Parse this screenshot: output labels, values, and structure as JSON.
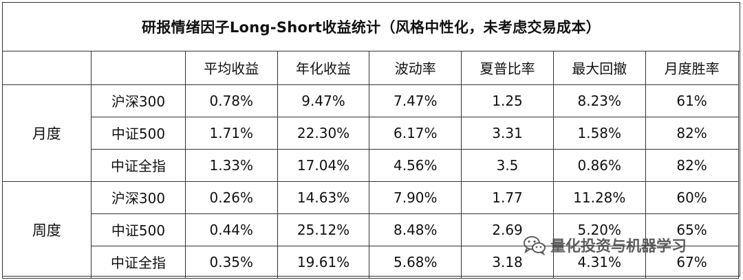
{
  "table_title": "研报情绪因子Long-Short收益统计（风格中性化，未考虑交易成本）",
  "columns": [
    "",
    "",
    "平均收益",
    "年化收益",
    "波动率",
    "夏普比率",
    "最大回撤",
    "月度胜率"
  ],
  "groups": [
    {
      "period": "月度",
      "rows": [
        {
          "index": "沪深300",
          "values": [
            "0.78%",
            "9.47%",
            "7.47%",
            "1.25",
            "8.23%",
            "61%"
          ]
        },
        {
          "index": "中证500",
          "values": [
            "1.71%",
            "22.30%",
            "6.17%",
            "3.31",
            "1.58%",
            "82%"
          ]
        },
        {
          "index": "中证全指",
          "values": [
            "1.33%",
            "17.04%",
            "4.56%",
            "3.5",
            "0.86%",
            "82%"
          ]
        }
      ]
    },
    {
      "period": "周度",
      "rows": [
        {
          "index": "沪深300",
          "values": [
            "0.26%",
            "14.63%",
            "7.90%",
            "1.77",
            "11.28%",
            "60%"
          ]
        },
        {
          "index": "中证500",
          "values": [
            "0.44%",
            "25.12%",
            "8.48%",
            "2.69",
            "5.20%",
            "65%"
          ]
        },
        {
          "index": "中证全指",
          "values": [
            "0.35%",
            "19.61%",
            "5.68%",
            "3.18",
            "4.31%",
            "67%"
          ]
        }
      ]
    }
  ],
  "watermark": {
    "icon": "wechat-icon",
    "text": "量化投资与机器学习"
  }
}
